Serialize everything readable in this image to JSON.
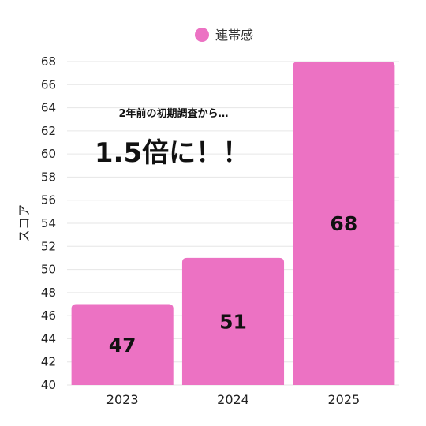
{
  "chart_data": {
    "type": "bar",
    "categories": [
      "2023",
      "2024",
      "2025"
    ],
    "series": [
      {
        "name": "連帯感",
        "values": [
          47,
          51,
          68
        ]
      }
    ],
    "ylabel": "スコア",
    "xlabel": "",
    "ylim": [
      40,
      68
    ],
    "yticks": [
      40,
      42,
      44,
      46,
      48,
      50,
      52,
      54,
      56,
      58,
      60,
      62,
      64,
      66,
      68
    ],
    "grid": true,
    "legend_position": "top-center",
    "bar_color": "#EC72C3",
    "annotations": {
      "line1": "2年前の初期調査から…",
      "line2": "1.5倍に！！"
    }
  }
}
